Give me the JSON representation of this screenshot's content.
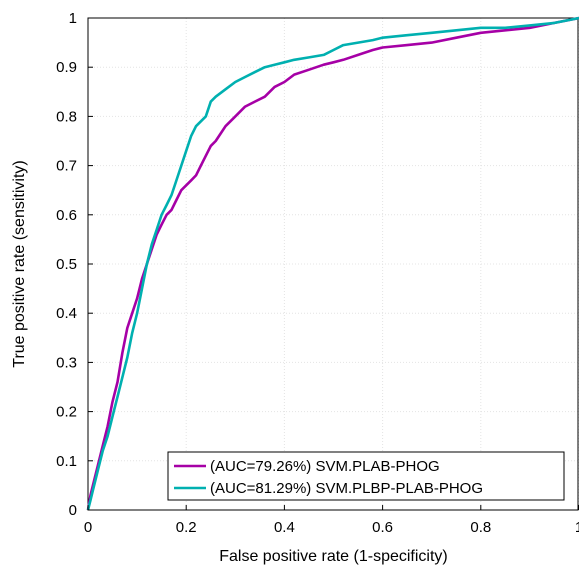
{
  "chart_data": {
    "type": "line",
    "title": "",
    "xlabel": "False positive rate (1-specificity)",
    "ylabel": "True positive rate (sensitivity)",
    "xlim": [
      0,
      1
    ],
    "ylim": [
      0,
      1
    ],
    "grid": true,
    "legend_position": "bottom-right",
    "x_ticks": [
      "0",
      "0.2",
      "0.4",
      "0.6",
      "0.8",
      "1"
    ],
    "y_ticks": [
      "0",
      "0.1",
      "0.2",
      "0.3",
      "0.4",
      "0.5",
      "0.6",
      "0.7",
      "0.8",
      "0.9",
      "1"
    ],
    "series": [
      {
        "name": "(AUC=79.26%) SVM.PLAB-PHOG",
        "color": "#a600a6",
        "x": [
          0,
          0.005,
          0.01,
          0.02,
          0.03,
          0.04,
          0.05,
          0.06,
          0.07,
          0.08,
          0.09,
          0.1,
          0.11,
          0.12,
          0.13,
          0.14,
          0.15,
          0.16,
          0.17,
          0.18,
          0.19,
          0.2,
          0.21,
          0.22,
          0.23,
          0.24,
          0.25,
          0.26,
          0.28,
          0.3,
          0.32,
          0.34,
          0.36,
          0.38,
          0.4,
          0.42,
          0.45,
          0.48,
          0.5,
          0.52,
          0.55,
          0.58,
          0.6,
          0.65,
          0.7,
          0.75,
          0.8,
          0.85,
          0.9,
          0.95,
          1.0
        ],
        "y": [
          0,
          0.03,
          0.05,
          0.09,
          0.13,
          0.17,
          0.22,
          0.26,
          0.32,
          0.37,
          0.4,
          0.43,
          0.47,
          0.5,
          0.53,
          0.56,
          0.58,
          0.6,
          0.61,
          0.63,
          0.65,
          0.66,
          0.67,
          0.68,
          0.7,
          0.72,
          0.74,
          0.75,
          0.78,
          0.8,
          0.82,
          0.83,
          0.84,
          0.86,
          0.87,
          0.885,
          0.895,
          0.905,
          0.91,
          0.915,
          0.925,
          0.935,
          0.94,
          0.945,
          0.95,
          0.96,
          0.97,
          0.975,
          0.98,
          0.99,
          1.0
        ]
      },
      {
        "name": "(AUC=81.29%) SVM.PLBP-PLAB-PHOG",
        "color": "#00b0b0",
        "x": [
          0,
          0.005,
          0.01,
          0.02,
          0.03,
          0.04,
          0.05,
          0.06,
          0.07,
          0.08,
          0.09,
          0.1,
          0.11,
          0.12,
          0.13,
          0.14,
          0.15,
          0.16,
          0.17,
          0.18,
          0.19,
          0.2,
          0.21,
          0.22,
          0.23,
          0.24,
          0.25,
          0.26,
          0.28,
          0.3,
          0.32,
          0.34,
          0.36,
          0.38,
          0.4,
          0.42,
          0.45,
          0.48,
          0.5,
          0.52,
          0.55,
          0.58,
          0.6,
          0.65,
          0.7,
          0.75,
          0.8,
          0.85,
          0.9,
          0.95,
          1.0
        ],
        "y": [
          0,
          0.02,
          0.04,
          0.08,
          0.12,
          0.15,
          0.19,
          0.23,
          0.27,
          0.31,
          0.36,
          0.4,
          0.45,
          0.5,
          0.54,
          0.57,
          0.6,
          0.62,
          0.64,
          0.67,
          0.7,
          0.73,
          0.76,
          0.78,
          0.79,
          0.8,
          0.83,
          0.84,
          0.855,
          0.87,
          0.88,
          0.89,
          0.9,
          0.905,
          0.91,
          0.915,
          0.92,
          0.925,
          0.935,
          0.945,
          0.95,
          0.955,
          0.96,
          0.965,
          0.97,
          0.975,
          0.98,
          0.98,
          0.985,
          0.99,
          1.0
        ]
      }
    ]
  }
}
